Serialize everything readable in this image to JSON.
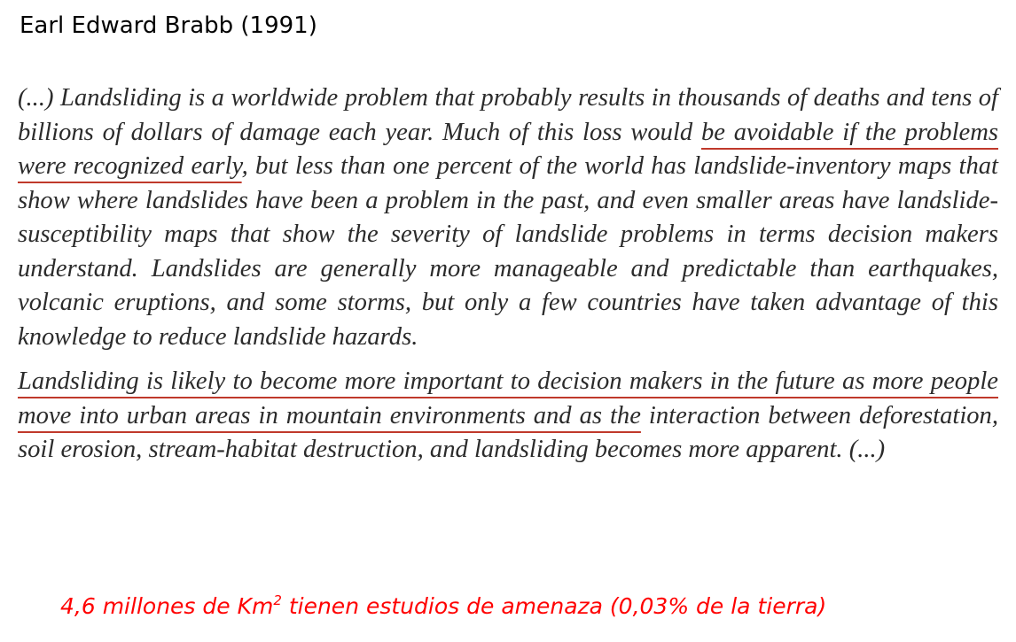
{
  "heading": "Earl Edward Brabb (1991)",
  "quote": {
    "para1": {
      "before": "(...) Landsliding is a worldwide problem that probably results in thousands of deaths and tens of billions of dollars of damage each year. Much of this loss would ",
      "underlined": "be avoidable if the problems were recognized early",
      "after": ", but less than one percent of the world has landslide-inventory maps that show where landslides have been a problem in the past, and even smaller areas have landslide-susceptibility maps that show the severity of landslide problems in terms decision makers understand. Landslides are generally more manageable and predictable than earthquakes, volcanic eruptions, and some storms, but only a few countries have taken advantage of this knowledge to reduce landslide hazards."
    },
    "para2": {
      "underlined": "Landsliding is likely to become more important to decision makers in the future as more people move into urban areas in mountain environments and as the",
      "after": " interaction between deforestation, soil erosion, stream-habitat destruction, and landsliding becomes more apparent. (...)"
    }
  },
  "footer": {
    "before": "4,6 millones de Km",
    "superscript": "2",
    "after": " tienen estudios de amenaza (0,03% de la tierra)",
    "color": "#ff0000"
  },
  "colors": {
    "underline": "#c0392b",
    "quote_text": "#2b2b2b"
  }
}
